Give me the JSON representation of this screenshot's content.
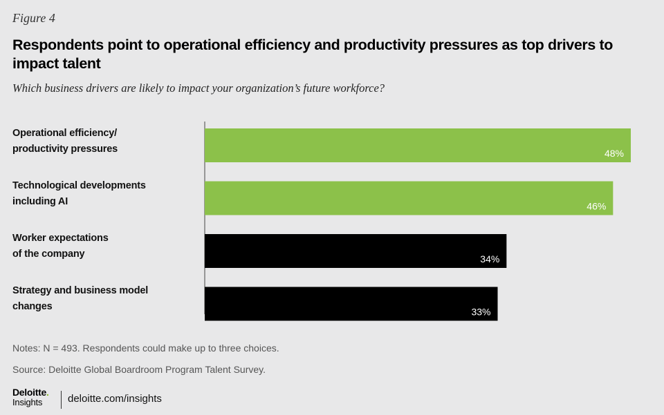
{
  "header": {
    "figure_label": "Figure 4",
    "title": "Respondents point to operational efficiency and productivity pressures as top drivers to impact talent",
    "subtitle": "Which business drivers are likely to impact your organization’s future workforce?"
  },
  "chart_data": {
    "type": "bar",
    "orientation": "horizontal",
    "title": "Respondents point to operational efficiency and productivity pressures as top drivers to impact talent",
    "subtitle": "Which business drivers are likely to impact your organization’s future workforce?",
    "categories": [
      "Operational efficiency/\nproductivity pressures",
      "Technological developments\nincluding AI",
      "Worker expectations\nof the company",
      "Strategy and business model\nchanges"
    ],
    "values": [
      48,
      46,
      34,
      33
    ],
    "value_labels": [
      "48%",
      "46%",
      "34%",
      "33%"
    ],
    "unit": "%",
    "xlim": [
      0,
      48
    ],
    "xlabel": "",
    "ylabel": "",
    "grid": false,
    "axis_line": "left",
    "colors": [
      "#8cc14a",
      "#8cc14a",
      "#000000",
      "#000000"
    ],
    "label_color": "#ffffff"
  },
  "notes": {
    "notes": "Notes: N = 493. Respondents could make up to three choices.",
    "source": "Source: Deloitte Global Boardroom Program Talent Survey."
  },
  "branding": {
    "logo_line1": "Deloitte",
    "logo_dot": ".",
    "logo_line2": "Insights",
    "url": "deloitte.com/insights",
    "accent_color": "#86bc25"
  }
}
